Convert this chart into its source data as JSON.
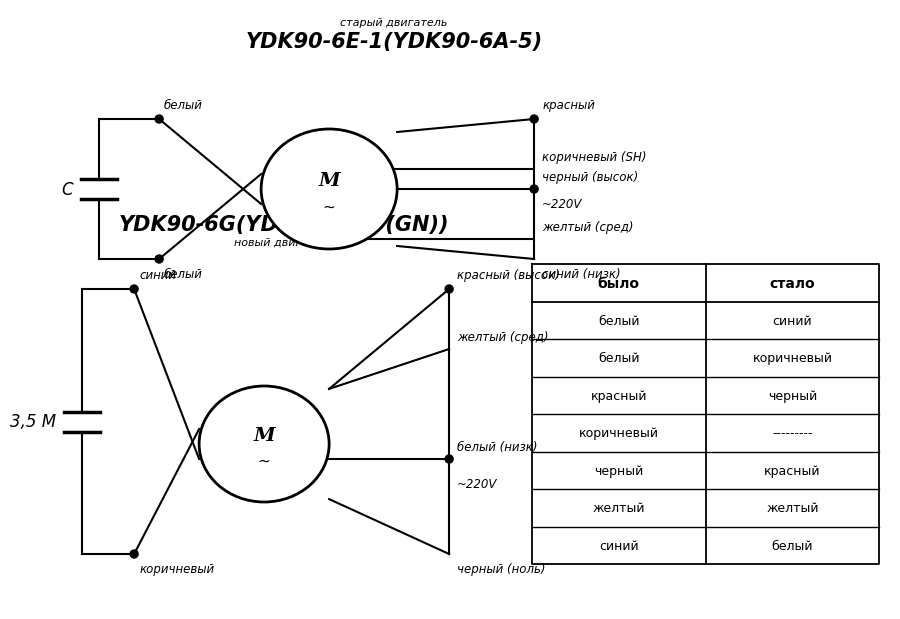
{
  "bg_color": "#ffffff",
  "title1_sub": "старый двигатель",
  "title1": "YDK90-6E-1(YDK90-6A-5)",
  "title2": "YDK90-6G(YDK90-6A-3(GN))",
  "title2_sub": "новый двигатель",
  "cap1_label": "C",
  "cap2_label": "3,5 М",
  "voltage_label": "~220V",
  "d1_right_labels": [
    "красный",
    "коричневый (SH)",
    "черный (высок)",
    "желтый (сред)",
    "синий (низк)"
  ],
  "d2_right_labels": [
    "красный (высок)",
    "желтый (сред)",
    "белый (низк)",
    "черный (ноль)"
  ],
  "table_bylo": [
    "белый",
    "белый",
    "красный",
    "коричневый",
    "черный",
    "желтый",
    "синий"
  ],
  "table_stalo": [
    "синий",
    "коричневый",
    "черный",
    "---------",
    "красный",
    "желтый",
    "белый"
  ],
  "table_header": [
    "было",
    "стало"
  ]
}
